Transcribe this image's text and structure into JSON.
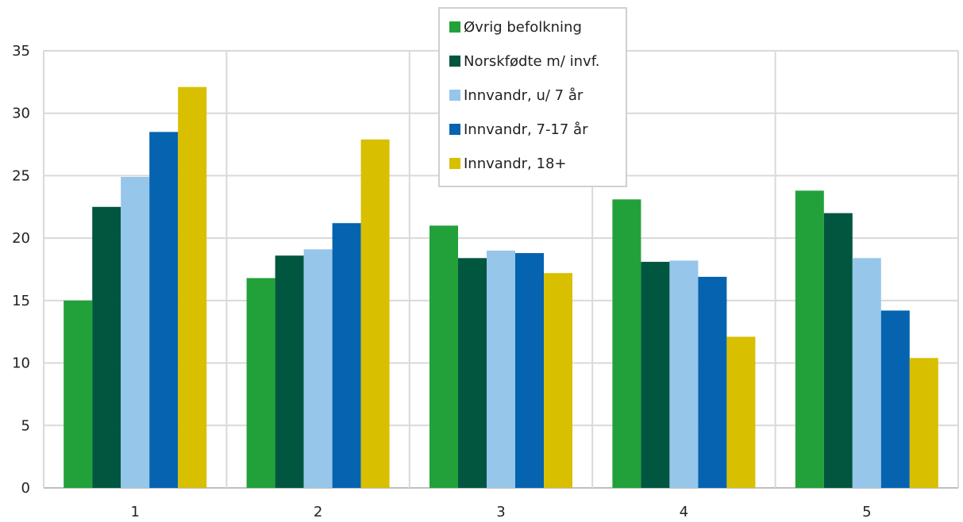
{
  "chart_data": {
    "type": "bar",
    "categories": [
      "1",
      "2",
      "3",
      "4",
      "5"
    ],
    "series": [
      {
        "name": "Øvrig befolkning",
        "color": "#22a13a",
        "values": [
          15.0,
          16.8,
          21.0,
          23.1,
          23.8
        ]
      },
      {
        "name": "Norskfødte m/ invf.",
        "color": "#015640",
        "values": [
          22.5,
          18.6,
          18.4,
          18.1,
          22.0
        ]
      },
      {
        "name": "Innvandr, u/ 7 år",
        "color": "#96c6ea",
        "values": [
          24.9,
          19.1,
          19.0,
          18.2,
          18.4
        ]
      },
      {
        "name": "Innvandr, 7-17 år",
        "color": "#0563b0",
        "values": [
          28.5,
          21.2,
          18.8,
          16.9,
          14.2
        ]
      },
      {
        "name": "Innvandr, 18+",
        "color": "#d8bf00",
        "values": [
          32.1,
          27.9,
          17.2,
          12.1,
          10.4
        ]
      }
    ],
    "ylim": [
      0,
      35
    ],
    "yticks": [
      "0",
      "5",
      "10",
      "15",
      "20",
      "25",
      "30",
      "35"
    ],
    "xlabel": "",
    "ylabel": "",
    "title": "",
    "grid": true,
    "legend_position": "top-center"
  }
}
